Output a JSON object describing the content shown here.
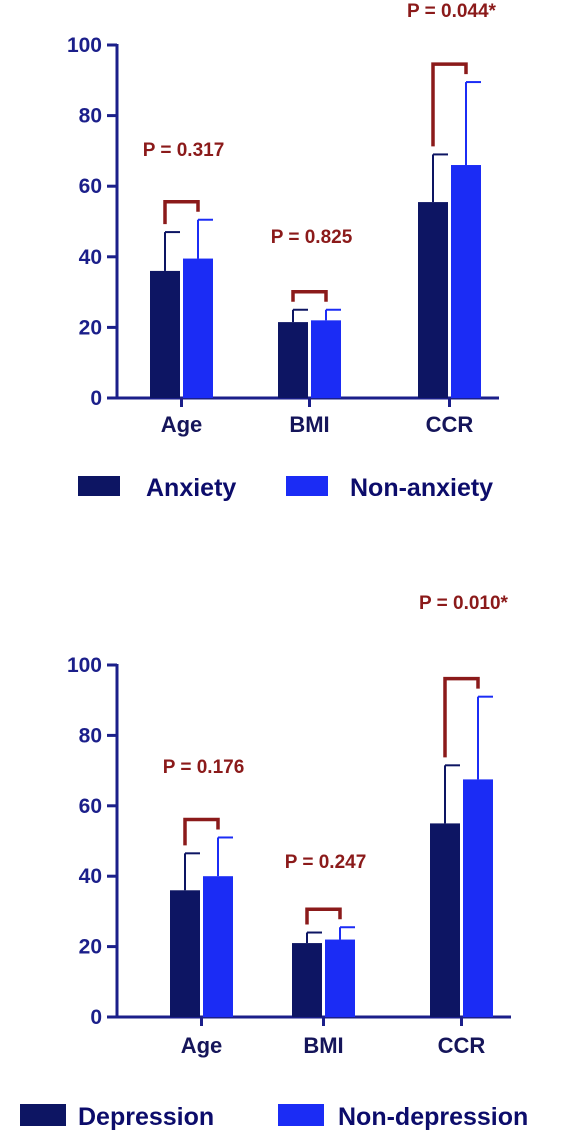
{
  "colors": {
    "axis": "#1b1f8a",
    "series1": "#0d1563",
    "series2": "#1b2cf5",
    "pvalue": "#8b1a1a"
  },
  "chart_data": [
    {
      "type": "bar",
      "categories": [
        "Age",
        "BMI",
        "CCR"
      ],
      "ylim": [
        0,
        100
      ],
      "yticks": [
        0,
        20,
        40,
        60,
        80,
        100
      ],
      "grid": false,
      "legend_position": "bottom",
      "series": [
        {
          "name": "Anxiety",
          "values": [
            36,
            21.5,
            55.5
          ],
          "errors": [
            11,
            3.5,
            13.5
          ]
        },
        {
          "name": "Non-anxiety",
          "values": [
            39.5,
            22,
            66
          ],
          "errors": [
            11,
            3,
            23.5
          ]
        }
      ],
      "annotations": [
        "P = 0.317",
        "P = 0.825",
        "P = 0.044*"
      ]
    },
    {
      "type": "bar",
      "categories": [
        "Age",
        "BMI",
        "CCR"
      ],
      "ylim": [
        0,
        100
      ],
      "yticks": [
        0,
        20,
        40,
        60,
        80,
        100
      ],
      "grid": false,
      "legend_position": "bottom",
      "series": [
        {
          "name": "Depression",
          "values": [
            36,
            21,
            55
          ],
          "errors": [
            10.5,
            3,
            16.5
          ]
        },
        {
          "name": "Non-depression",
          "values": [
            40,
            22,
            67.5
          ],
          "errors": [
            11,
            3.5,
            23.5
          ]
        }
      ],
      "annotations": [
        "P = 0.176",
        "P = 0.247",
        "P = 0.010*"
      ]
    }
  ]
}
